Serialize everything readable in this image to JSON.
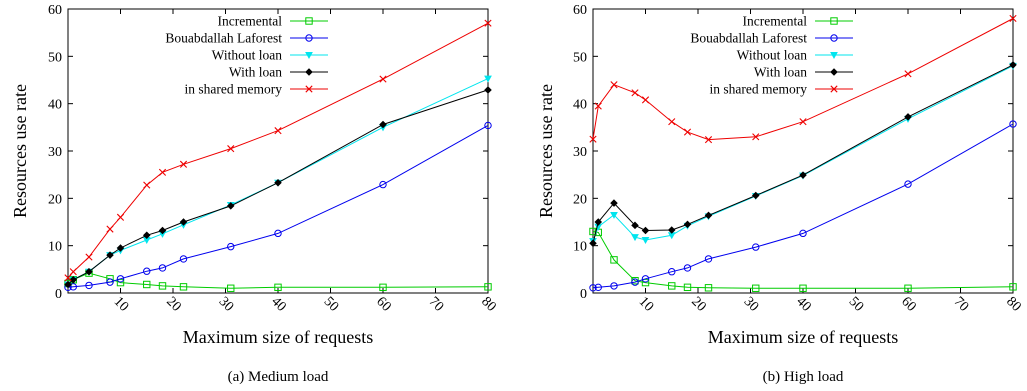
{
  "chart_data": [
    {
      "type": "line",
      "caption": "(a) Medium load",
      "xlabel": "Maximum size of requests",
      "ylabel": "Resources use rate",
      "xlim": [
        0,
        80
      ],
      "ylim": [
        0,
        60
      ],
      "xticks": [
        10,
        20,
        30,
        40,
        50,
        60,
        70,
        80
      ],
      "yticks": [
        0,
        10,
        20,
        30,
        40,
        50,
        60
      ],
      "legend_position": "top-left",
      "series": [
        {
          "name": "Incremental",
          "color": "#00cc00",
          "marker": "square",
          "x": [
            0,
            1,
            4,
            8,
            10,
            15,
            18,
            22,
            31,
            40,
            60,
            80
          ],
          "y": [
            2.0,
            2.8,
            4.2,
            3.0,
            2.2,
            1.8,
            1.5,
            1.3,
            1.0,
            1.2,
            1.2,
            1.3
          ]
        },
        {
          "name": "Bouabdallah Laforest",
          "color": "#0000ee",
          "marker": "circle",
          "x": [
            0,
            1,
            4,
            8,
            10,
            15,
            18,
            22,
            31,
            40,
            60,
            80
          ],
          "y": [
            1.2,
            1.3,
            1.6,
            2.3,
            3.0,
            4.6,
            5.3,
            7.2,
            9.8,
            12.6,
            22.9,
            35.4
          ]
        },
        {
          "name": "Without loan",
          "color": "#00e5ee",
          "marker": "triangle",
          "x": [
            0,
            1,
            4,
            8,
            10,
            15,
            18,
            22,
            31,
            40,
            60,
            80
          ],
          "y": [
            1.8,
            2.8,
            4.5,
            8.0,
            9.0,
            11.2,
            12.5,
            14.4,
            18.6,
            23.3,
            35.0,
            45.3
          ]
        },
        {
          "name": "With loan",
          "color": "#000000",
          "marker": "diamond",
          "x": [
            0,
            1,
            4,
            8,
            10,
            15,
            18,
            22,
            31,
            40,
            60,
            80
          ],
          "y": [
            1.8,
            2.8,
            4.5,
            8.0,
            9.5,
            12.2,
            13.2,
            15.0,
            18.4,
            23.3,
            35.6,
            42.9
          ]
        },
        {
          "name": "in shared memory",
          "color": "#ee0000",
          "marker": "cross",
          "x": [
            0,
            1,
            4,
            8,
            10,
            15,
            18,
            22,
            31,
            40,
            60,
            80
          ],
          "y": [
            3.2,
            4.5,
            7.6,
            13.5,
            16.0,
            22.8,
            25.5,
            27.2,
            30.5,
            34.3,
            45.2,
            57.0
          ]
        }
      ]
    },
    {
      "type": "line",
      "caption": "(b) High load",
      "xlabel": "Maximum size of requests",
      "ylabel": "Resources use rate",
      "xlim": [
        0,
        80
      ],
      "ylim": [
        0,
        60
      ],
      "xticks": [
        10,
        20,
        30,
        40,
        50,
        60,
        70,
        80
      ],
      "yticks": [
        0,
        10,
        20,
        30,
        40,
        50,
        60
      ],
      "legend_position": "top-left",
      "series": [
        {
          "name": "Incremental",
          "color": "#00cc00",
          "marker": "square",
          "x": [
            0,
            1,
            4,
            8,
            10,
            15,
            18,
            22,
            31,
            40,
            60,
            80
          ],
          "y": [
            13.0,
            12.8,
            7.0,
            2.6,
            2.2,
            1.5,
            1.2,
            1.1,
            1.0,
            1.0,
            1.0,
            1.3
          ]
        },
        {
          "name": "Bouabdallah Laforest",
          "color": "#0000ee",
          "marker": "circle",
          "x": [
            0,
            1,
            4,
            8,
            10,
            15,
            18,
            22,
            31,
            40,
            60,
            80
          ],
          "y": [
            1.1,
            1.2,
            1.5,
            2.3,
            3.0,
            4.5,
            5.3,
            7.2,
            9.7,
            12.6,
            23.0,
            35.7
          ]
        },
        {
          "name": "Without loan",
          "color": "#00e5ee",
          "marker": "triangle",
          "x": [
            0,
            1,
            4,
            8,
            10,
            15,
            18,
            22,
            31,
            40,
            60,
            80
          ],
          "y": [
            11.0,
            14.0,
            16.5,
            11.8,
            11.2,
            12.2,
            14.2,
            16.2,
            20.5,
            24.8,
            36.8,
            48.0
          ]
        },
        {
          "name": "With loan",
          "color": "#000000",
          "marker": "diamond",
          "x": [
            0,
            1,
            4,
            8,
            10,
            15,
            18,
            22,
            31,
            40,
            60,
            80
          ],
          "y": [
            10.5,
            15.0,
            19.0,
            14.3,
            13.2,
            13.3,
            14.5,
            16.4,
            20.6,
            24.9,
            37.2,
            48.2
          ]
        },
        {
          "name": "in shared memory",
          "color": "#ee0000",
          "marker": "cross",
          "x": [
            0,
            1,
            4,
            8,
            10,
            15,
            18,
            22,
            31,
            40,
            60,
            80
          ],
          "y": [
            32.5,
            39.5,
            44.0,
            42.3,
            40.8,
            36.2,
            34.0,
            32.4,
            33.0,
            36.2,
            46.3,
            58.0
          ]
        }
      ]
    }
  ]
}
